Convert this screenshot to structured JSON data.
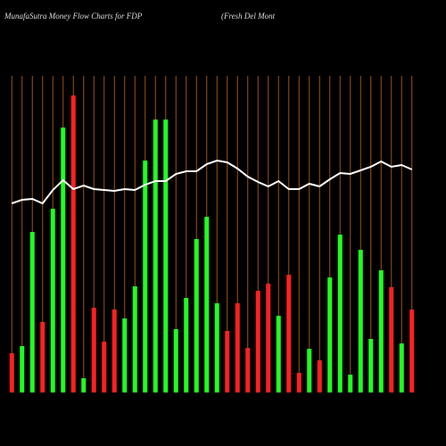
{
  "chart_data": {
    "type": "bar",
    "title": "MunafaSutra  Money Flow  Charts for FDP",
    "subtitle": "(Fresh Del Mont",
    "categories": [
      null,
      null,
      null,
      null,
      null,
      null,
      null,
      null,
      null,
      null,
      null,
      null,
      null,
      null,
      null,
      null,
      null,
      null,
      null,
      null,
      null,
      null,
      null,
      null,
      null,
      null,
      null,
      null,
      null,
      null,
      null,
      null,
      null,
      null,
      null,
      null,
      null,
      null,
      null,
      null
    ],
    "values": [
      44,
      52,
      180,
      79,
      206,
      297,
      333,
      16,
      95,
      57,
      93,
      83,
      119,
      260,
      306,
      306,
      71,
      106,
      172,
      197,
      100,
      69,
      100,
      50,
      114,
      122,
      86,
      132,
      22,
      49,
      36,
      129,
      177,
      20,
      160,
      60,
      137,
      118,
      55,
      93
    ],
    "colors": [
      "#ff2020",
      "#20ff20",
      "#20ff20",
      "#ff2020",
      "#20ff20",
      "#20ff20",
      "#ff2020",
      "#20ff20",
      "#ff2020",
      "#ff2020",
      "#ff2020",
      "#20ff20",
      "#20ff20",
      "#20ff20",
      "#20ff20",
      "#20ff20",
      "#20ff20",
      "#20ff20",
      "#20ff20",
      "#20ff20",
      "#20ff20",
      "#ff2020",
      "#ff2020",
      "#ff2020",
      "#ff2020",
      "#ff2020",
      "#20ff20",
      "#ff2020",
      "#ff2020",
      "#20ff20",
      "#ff2020",
      "#20ff20",
      "#20ff20",
      "#20ff20",
      "#20ff20",
      "#20ff20",
      "#20ff20",
      "#ff2020",
      "#20ff20",
      "#ff2020"
    ],
    "line": {
      "color": "#ffffff",
      "values": [
        212,
        216,
        217,
        212,
        227,
        238,
        228,
        232,
        228,
        227,
        226,
        228,
        227,
        233,
        237,
        237,
        245,
        248,
        248,
        256,
        260,
        258,
        251,
        242,
        236,
        231,
        237,
        228,
        228,
        234,
        231,
        239,
        246,
        245,
        249,
        253,
        259,
        253,
        255,
        250
      ]
    },
    "ylim": [
      0,
      340
    ],
    "grid_color": "#a0520f"
  }
}
